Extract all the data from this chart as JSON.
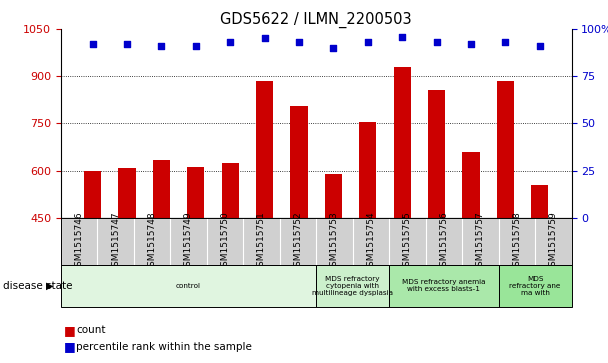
{
  "title": "GDS5622 / ILMN_2200503",
  "samples": [
    "GSM1515746",
    "GSM1515747",
    "GSM1515748",
    "GSM1515749",
    "GSM1515750",
    "GSM1515751",
    "GSM1515752",
    "GSM1515753",
    "GSM1515754",
    "GSM1515755",
    "GSM1515756",
    "GSM1515757",
    "GSM1515758",
    "GSM1515759"
  ],
  "counts": [
    600,
    607,
    635,
    610,
    625,
    885,
    805,
    590,
    755,
    930,
    855,
    660,
    885,
    555
  ],
  "percentiles": [
    92,
    92,
    91,
    91,
    93,
    95,
    93,
    90,
    93,
    96,
    93,
    92,
    93,
    91
  ],
  "bar_color": "#cc0000",
  "dot_color": "#0000cc",
  "ylim_left": [
    450,
    1050
  ],
  "ylim_right": [
    0,
    100
  ],
  "yticks_left": [
    450,
    600,
    750,
    900,
    1050
  ],
  "yticks_right": [
    0,
    25,
    50,
    75,
    100
  ],
  "grid_values": [
    600,
    750,
    900
  ],
  "disease_groups": [
    {
      "label": "control",
      "start": 0,
      "end": 7,
      "color": "#e0f5e0"
    },
    {
      "label": "MDS refractory\ncytopenia with\nmultilineage dysplasia",
      "start": 7,
      "end": 9,
      "color": "#ccf0cc"
    },
    {
      "label": "MDS refractory anemia\nwith excess blasts-1",
      "start": 9,
      "end": 12,
      "color": "#aae8aa"
    },
    {
      "label": "MDS\nrefractory ane\nma with",
      "start": 12,
      "end": 14,
      "color": "#99e599"
    }
  ],
  "legend_label_count": "count",
  "legend_label_percentile": "percentile rank within the sample",
  "disease_state_label": "disease state",
  "left_tick_color": "#cc0000",
  "right_tick_color": "#0000cc",
  "xtick_bg_color": "#d0d0d0",
  "fig_bg": "#ffffff"
}
